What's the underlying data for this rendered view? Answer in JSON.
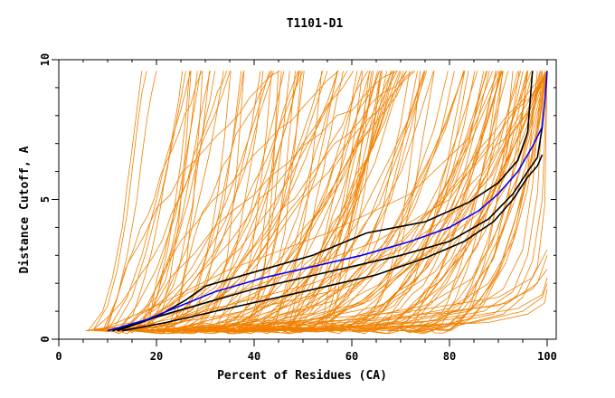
{
  "chart_data": {
    "type": "line",
    "title": "T1101-D1",
    "xlabel": "Percent of Residues (CA)",
    "ylabel": "Distance Cutoff, A",
    "xlim": [
      0,
      100
    ],
    "ylim": [
      0,
      10
    ],
    "x_ticks": [
      0,
      20,
      40,
      60,
      80,
      100
    ],
    "y_ticks": [
      0,
      5,
      10
    ],
    "colors": {
      "bundle": "#f08000",
      "highlight": "#0000ff",
      "reference": "#000000"
    },
    "generated_bundle_count": 120,
    "series": [
      {
        "name": "early-steep-1",
        "color": "orange",
        "x": [
          6,
          9,
          11,
          13,
          14,
          15,
          16,
          17
        ],
        "y": [
          0.3,
          1.0,
          2.2,
          4.0,
          5.5,
          6.8,
          8.2,
          9.6
        ]
      },
      {
        "name": "early-steep-2",
        "color": "orange",
        "x": [
          7,
          10,
          12,
          14,
          15,
          16,
          17,
          18
        ],
        "y": [
          0.3,
          1.2,
          2.5,
          4.5,
          6.0,
          7.5,
          8.8,
          9.6
        ]
      },
      {
        "name": "early-steep-3",
        "color": "orange",
        "x": [
          9,
          12,
          14,
          16,
          17,
          18,
          19,
          20
        ],
        "y": [
          0.3,
          1.5,
          3.0,
          5.0,
          6.5,
          7.8,
          8.8,
          9.6
        ]
      },
      {
        "name": "early-steep-4",
        "color": "orange",
        "x": [
          10,
          14,
          17,
          20,
          22,
          25,
          27
        ],
        "y": [
          0.3,
          1.5,
          3.0,
          5.0,
          6.5,
          8.2,
          9.6
        ]
      },
      {
        "name": "early-steep-5",
        "color": "orange",
        "x": [
          12,
          16,
          20,
          24,
          26,
          28,
          29
        ],
        "y": [
          0.3,
          1.2,
          2.5,
          4.5,
          6.5,
          8.5,
          9.6
        ]
      },
      {
        "name": "early-steep-6",
        "color": "orange",
        "x": [
          11,
          15,
          18,
          21,
          23,
          25,
          26
        ],
        "y": [
          0.3,
          1.5,
          3.2,
          5.2,
          6.8,
          8.6,
          9.6
        ]
      },
      {
        "name": "early-steep-7",
        "color": "orange",
        "x": [
          13,
          18,
          22,
          25,
          27,
          29,
          31
        ],
        "y": [
          0.3,
          1.2,
          2.5,
          4.2,
          6.0,
          8.0,
          9.6
        ]
      },
      {
        "name": "mid-steep-1",
        "color": "orange",
        "x": [
          15,
          22,
          28,
          34,
          38,
          41,
          44
        ],
        "y": [
          0.3,
          1.2,
          2.4,
          4.2,
          6.0,
          8.0,
          9.6
        ]
      },
      {
        "name": "mid-steep-2",
        "color": "orange",
        "x": [
          16,
          25,
          33,
          39,
          43,
          46,
          49
        ],
        "y": [
          0.3,
          1.0,
          2.2,
          4.2,
          6.2,
          8.2,
          9.6
        ]
      },
      {
        "name": "mid-steep-3",
        "color": "orange",
        "x": [
          18,
          28,
          37,
          44,
          48,
          52,
          55
        ],
        "y": [
          0.3,
          1.0,
          2.0,
          3.8,
          5.8,
          8.0,
          9.6
        ]
      },
      {
        "name": "mid-steep-4",
        "color": "orange",
        "x": [
          20,
          32,
          42,
          50,
          55,
          59,
          62
        ],
        "y": [
          0.3,
          1.0,
          1.8,
          3.5,
          5.5,
          7.8,
          9.6
        ]
      },
      {
        "name": "mid-steep-5",
        "color": "orange",
        "x": [
          22,
          36,
          47,
          56,
          61,
          65,
          68
        ],
        "y": [
          0.3,
          0.9,
          1.6,
          3.2,
          5.2,
          7.5,
          9.6
        ]
      },
      {
        "name": "mid-steep-6",
        "color": "orange",
        "x": [
          24,
          40,
          52,
          62,
          68,
          72,
          75
        ],
        "y": [
          0.3,
          0.8,
          1.5,
          3.0,
          5.0,
          7.5,
          9.6
        ]
      },
      {
        "name": "mid-steep-7",
        "color": "orange",
        "x": [
          26,
          44,
          57,
          67,
          73,
          78,
          81
        ],
        "y": [
          0.3,
          0.8,
          1.4,
          2.8,
          4.8,
          7.2,
          9.6
        ]
      },
      {
        "name": "mid-steep-8",
        "color": "orange",
        "x": [
          28,
          48,
          62,
          72,
          79,
          84,
          87
        ],
        "y": [
          0.3,
          0.7,
          1.3,
          2.6,
          4.5,
          7.0,
          9.6
        ]
      },
      {
        "name": "mid-steep-9",
        "color": "orange",
        "x": [
          30,
          52,
          66,
          77,
          84,
          88,
          91
        ],
        "y": [
          0.3,
          0.7,
          1.2,
          2.4,
          4.2,
          6.8,
          9.6
        ]
      },
      {
        "name": "late-1",
        "color": "orange",
        "x": [
          35,
          60,
          75,
          85,
          90,
          94,
          96
        ],
        "y": [
          0.3,
          0.7,
          1.2,
          2.2,
          4.0,
          6.5,
          9.6
        ]
      },
      {
        "name": "late-2",
        "color": "orange",
        "x": [
          40,
          65,
          80,
          88,
          93,
          96,
          98
        ],
        "y": [
          0.3,
          0.6,
          1.1,
          2.0,
          3.5,
          6.0,
          9.6
        ]
      },
      {
        "name": "late-3",
        "color": "orange",
        "x": [
          45,
          70,
          84,
          91,
          95,
          97,
          99
        ],
        "y": [
          0.3,
          0.6,
          1.0,
          1.8,
          3.2,
          5.5,
          9.6
        ]
      },
      {
        "name": "late-4",
        "color": "orange",
        "x": [
          50,
          74,
          87,
          93,
          96,
          98,
          99.5
        ],
        "y": [
          0.3,
          0.6,
          1.0,
          1.7,
          3.0,
          5.2,
          9.6
        ]
      },
      {
        "name": "late-5",
        "color": "orange",
        "x": [
          55,
          78,
          89,
          94,
          97,
          99,
          100
        ],
        "y": [
          0.3,
          0.5,
          0.9,
          1.6,
          2.8,
          5.0,
          9.6
        ]
      },
      {
        "name": "late-6",
        "color": "orange",
        "x": [
          60,
          82,
          91,
          95,
          98,
          99.5,
          100
        ],
        "y": [
          0.3,
          0.5,
          0.9,
          1.5,
          2.6,
          4.8,
          9.6
        ]
      },
      {
        "name": "wide-1",
        "color": "orange",
        "x": [
          10,
          25,
          45,
          65,
          80,
          88,
          92
        ],
        "y": [
          0.3,
          1.0,
          2.2,
          3.5,
          5.0,
          7.0,
          9.6
        ]
      },
      {
        "name": "wide-2",
        "color": "orange",
        "x": [
          12,
          30,
          52,
          70,
          83,
          90,
          94
        ],
        "y": [
          0.3,
          1.0,
          2.0,
          3.2,
          4.8,
          6.8,
          9.6
        ]
      },
      {
        "name": "wide-3",
        "color": "orange",
        "x": [
          14,
          35,
          58,
          75,
          86,
          92,
          96
        ],
        "y": [
          0.3,
          0.9,
          1.8,
          3.0,
          4.5,
          6.5,
          9.6
        ]
      },
      {
        "name": "wide-4",
        "color": "orange",
        "x": [
          8,
          20,
          35,
          55,
          72,
          84,
          90
        ],
        "y": [
          0.3,
          1.2,
          2.5,
          3.8,
          5.2,
          7.2,
          9.6
        ]
      },
      {
        "name": "bottom-1",
        "color": "orange",
        "x": [
          15,
          40,
          70,
          90,
          97,
          100
        ],
        "y": [
          0.3,
          0.5,
          0.8,
          1.2,
          1.8,
          2.5
        ]
      },
      {
        "name": "bottom-2",
        "color": "orange",
        "x": [
          20,
          50,
          75,
          92,
          98,
          100
        ],
        "y": [
          0.3,
          0.5,
          0.8,
          1.3,
          2.0,
          3.0
        ]
      },
      {
        "name": "bottom-3",
        "color": "orange",
        "x": [
          25,
          55,
          80,
          94,
          99,
          100
        ],
        "y": [
          0.3,
          0.4,
          0.7,
          1.1,
          1.6,
          2.2
        ]
      },
      {
        "name": "bottom-4",
        "color": "orange",
        "x": [
          30,
          60,
          85,
          95,
          99,
          100
        ],
        "y": [
          0.3,
          0.4,
          0.6,
          1.0,
          1.5,
          2.0
        ]
      },
      {
        "name": "bottom-5",
        "color": "orange",
        "x": [
          35,
          65,
          88,
          96,
          99.5,
          100
        ],
        "y": [
          0.3,
          0.4,
          0.6,
          0.9,
          1.3,
          1.8
        ]
      },
      {
        "name": "bottom-6",
        "color": "orange",
        "x": [
          18,
          45,
          72,
          90,
          97,
          100
        ],
        "y": [
          0.3,
          0.6,
          1.0,
          1.5,
          2.2,
          3.2
        ]
      },
      {
        "name": "reference-1",
        "color": "black",
        "x": [
          12,
          20,
          26,
          30,
          40,
          52,
          63,
          75,
          84,
          90,
          94,
          96,
          97
        ],
        "y": [
          0.3,
          0.8,
          1.4,
          1.9,
          2.4,
          3.0,
          3.8,
          4.2,
          4.9,
          5.6,
          6.4,
          7.4,
          9.6
        ]
      },
      {
        "name": "reference-2",
        "color": "black",
        "x": [
          11,
          20,
          30,
          40,
          50,
          60,
          70,
          80,
          88,
          93,
          96,
          98,
          99
        ],
        "y": [
          0.3,
          0.8,
          1.3,
          1.8,
          2.2,
          2.6,
          3.0,
          3.5,
          4.3,
          5.2,
          6.0,
          6.5,
          7.6
        ]
      },
      {
        "name": "reference-3",
        "color": "black",
        "x": [
          13,
          22,
          32,
          45,
          55,
          65,
          75,
          83,
          89,
          93,
          96,
          98,
          99
        ],
        "y": [
          0.3,
          0.6,
          1.0,
          1.5,
          1.9,
          2.3,
          2.9,
          3.5,
          4.2,
          5.0,
          5.8,
          6.2,
          6.6
        ]
      },
      {
        "name": "highlighted-model",
        "color": "blue",
        "x": [
          10,
          18,
          25,
          32,
          42,
          52,
          62,
          72,
          80,
          86,
          90,
          94,
          97,
          99,
          99.5,
          100
        ],
        "y": [
          0.3,
          0.7,
          1.2,
          1.7,
          2.2,
          2.6,
          3.0,
          3.5,
          4.0,
          4.6,
          5.2,
          6.0,
          6.9,
          7.6,
          8.5,
          9.6
        ]
      }
    ]
  }
}
